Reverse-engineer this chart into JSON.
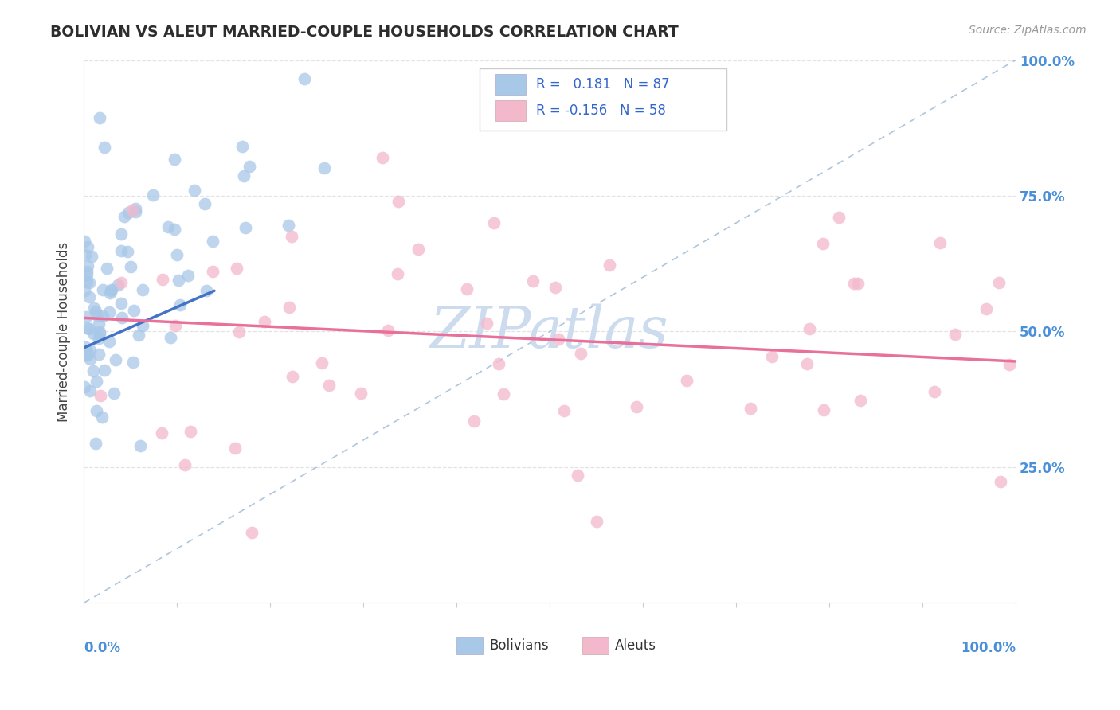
{
  "title": "BOLIVIAN VS ALEUT MARRIED-COUPLE HOUSEHOLDS CORRELATION CHART",
  "source": "Source: ZipAtlas.com",
  "ylabel": "Married-couple Households",
  "bolivian_R": 0.181,
  "bolivian_N": 87,
  "aleut_R": -0.156,
  "aleut_N": 58,
  "bolivian_color": "#a8c8e8",
  "aleut_color": "#f4b8cc",
  "bolivian_line_color": "#4472c4",
  "aleut_line_color": "#e8709a",
  "diagonal_line_color": "#a0bcd8",
  "watermark_color": "#ccdcee",
  "background_color": "#ffffff",
  "grid_color": "#dddddd",
  "tick_label_color": "#4a90d9",
  "title_color": "#2d2d2d",
  "source_color": "#999999",
  "ylabel_color": "#444444"
}
